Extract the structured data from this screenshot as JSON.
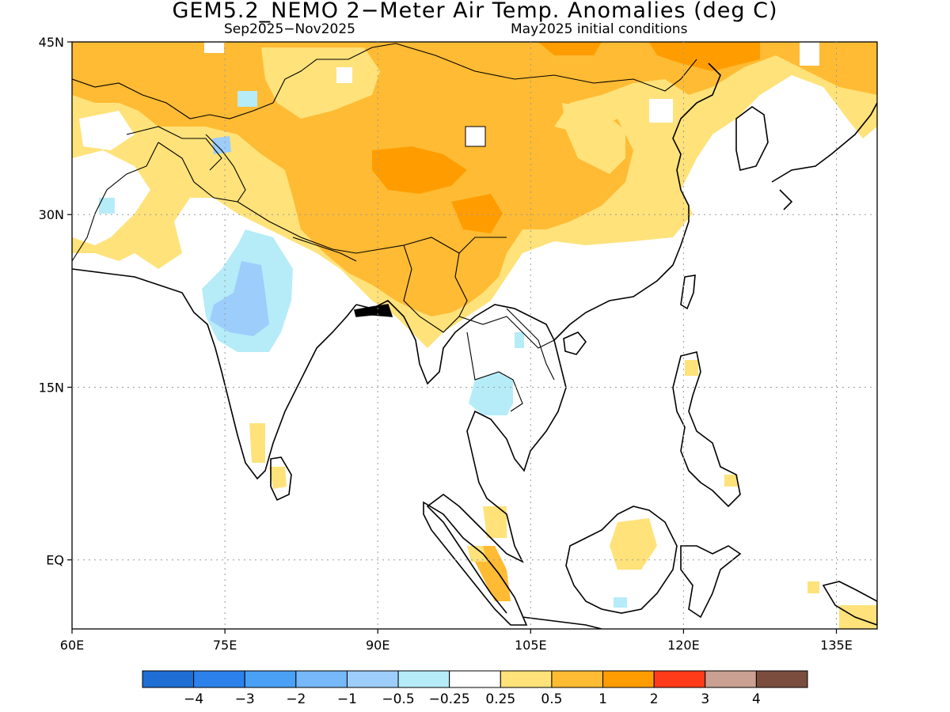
{
  "title": "GEM5.2_NEMO 2−Meter Air Temp. Anomalies (deg C)",
  "subtitle_left": "Sep2025−Nov2025",
  "subtitle_right": "May2025 initial conditions",
  "map": {
    "lon_range": [
      60,
      139
    ],
    "lat_range": [
      -6,
      45
    ],
    "lon_ticks": [
      {
        "value": 60,
        "label": "60E"
      },
      {
        "value": 75,
        "label": "75E"
      },
      {
        "value": 90,
        "label": "90E"
      },
      {
        "value": 105,
        "label": "105E"
      },
      {
        "value": 120,
        "label": "120E"
      },
      {
        "value": 135,
        "label": "135E"
      }
    ],
    "lat_ticks": [
      {
        "value": 45,
        "label": "45N"
      },
      {
        "value": 30,
        "label": "30N"
      },
      {
        "value": 15,
        "label": "15N"
      },
      {
        "value": 0,
        "label": "EQ"
      }
    ],
    "grid": "dotted",
    "anomaly_regions": [
      {
        "region": "Northern Asia / Mongolia / northern China",
        "category": "0.5 to 1"
      },
      {
        "region": "Tibetan Plateau",
        "category": "0.5 to 1"
      },
      {
        "region": "Northeast Tibetan Plateau",
        "category": "1 to 2"
      },
      {
        "region": "Southwest China / Myanmar",
        "category": "0.5 to 1"
      },
      {
        "region": "Afghanistan / Pakistan",
        "category": "0.25 to 0.5"
      },
      {
        "region": "Central India",
        "category": "-1 to -0.5"
      },
      {
        "region": "Thailand",
        "category": "-0.5 to -0.25"
      },
      {
        "region": "Borneo",
        "category": "0.25 to 0.5"
      },
      {
        "region": "Sumatra",
        "category": "0.5 to 1"
      }
    ]
  },
  "colorbar": {
    "colors": [
      "#1e6ed3",
      "#2c82ea",
      "#4aa0f5",
      "#76b8f8",
      "#9ccdfb",
      "#b5ecf8",
      "#ffffff",
      "#ffe27a",
      "#ffbb33",
      "#ff9d00",
      "#ff3b1a",
      "#c9a091",
      "#7b4d3f"
    ],
    "labels": [
      "−4",
      "−3",
      "−2",
      "−1",
      "−0.5",
      "−0.25",
      "0.25",
      "0.5",
      "1",
      "2",
      "3",
      "4"
    ]
  }
}
